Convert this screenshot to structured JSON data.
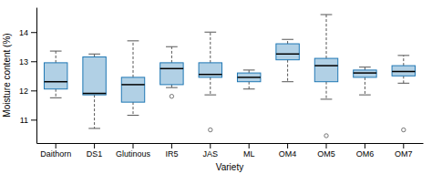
{
  "chart_data": {
    "type": "box",
    "xlabel": "Variety",
    "ylabel": "Moisture content (%)",
    "categories": [
      "Daithorn",
      "DS1",
      "Glutinous",
      "IR5",
      "JAS",
      "ML",
      "OM4",
      "OM5",
      "OM6",
      "OM7"
    ],
    "boxes": [
      {
        "q1": 12.05,
        "median": 12.3,
        "q3": 12.95,
        "whislo": 11.75,
        "whishi": 13.35,
        "fliers": []
      },
      {
        "q1": 11.85,
        "median": 11.9,
        "q3": 13.15,
        "whislo": 10.7,
        "whishi": 13.25,
        "fliers": []
      },
      {
        "q1": 11.6,
        "median": 12.2,
        "q3": 12.45,
        "whislo": 11.15,
        "whishi": 13.7,
        "fliers": []
      },
      {
        "q1": 12.2,
        "median": 12.75,
        "q3": 12.95,
        "whislo": 12.1,
        "whishi": 13.5,
        "fliers": [
          11.8
        ]
      },
      {
        "q1": 12.45,
        "median": 12.55,
        "q3": 12.95,
        "whislo": 11.85,
        "whishi": 14.0,
        "fliers": [
          10.65
        ]
      },
      {
        "q1": 12.3,
        "median": 12.45,
        "q3": 12.6,
        "whislo": 12.05,
        "whishi": 12.7,
        "fliers": []
      },
      {
        "q1": 13.05,
        "median": 13.25,
        "q3": 13.6,
        "whislo": 12.3,
        "whishi": 13.75,
        "fliers": []
      },
      {
        "q1": 12.3,
        "median": 12.85,
        "q3": 13.1,
        "whislo": 11.7,
        "whishi": 14.6,
        "fliers": [
          10.45
        ]
      },
      {
        "q1": 12.45,
        "median": 12.6,
        "q3": 12.7,
        "whislo": 11.85,
        "whishi": 12.8,
        "fliers": []
      },
      {
        "q1": 12.5,
        "median": 12.65,
        "q3": 12.85,
        "whislo": 12.25,
        "whishi": 13.2,
        "fliers": [
          10.65
        ]
      }
    ],
    "ylim": [
      10.2,
      14.85
    ],
    "yticks": [
      11,
      12,
      13,
      14
    ],
    "grid": false
  }
}
